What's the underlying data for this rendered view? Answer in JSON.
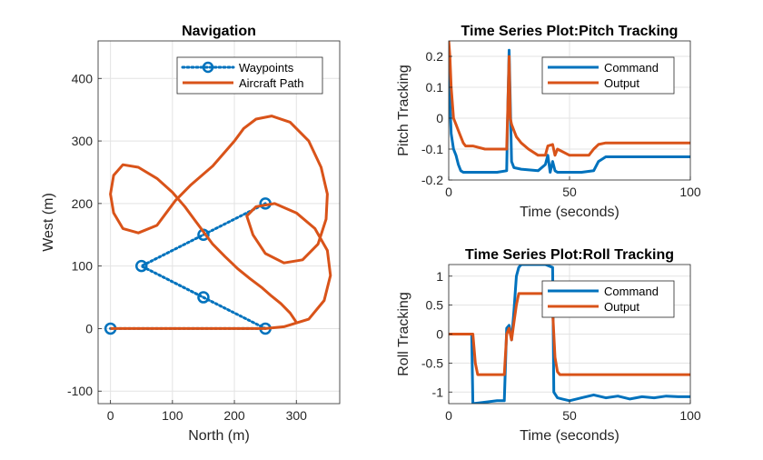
{
  "chart_data": [
    {
      "type": "line",
      "title": "Navigation",
      "xlabel": "North (m)",
      "ylabel": "West (m)",
      "xlim": [
        -20,
        370
      ],
      "ylim": [
        -120,
        460
      ],
      "xticks": [
        0,
        100,
        200,
        300
      ],
      "yticks": [
        -100,
        0,
        100,
        200,
        300,
        400
      ],
      "grid": true,
      "legend": "top-right",
      "aspect": "equal",
      "series": [
        {
          "name": "Waypoints",
          "color": "#0072BD",
          "style": "dotted-circle-markers",
          "x": [
            0,
            250,
            150,
            50,
            150,
            250
          ],
          "y": [
            0,
            0,
            50,
            100,
            150,
            200
          ]
        },
        {
          "name": "Aircraft Path",
          "color": "#D95319",
          "style": "solid",
          "x": [
            0,
            100,
            200,
            250,
            280,
            320,
            345,
            355,
            350,
            330,
            300,
            265,
            235,
            220,
            230,
            250,
            280,
            310,
            335,
            348,
            350,
            340,
            320,
            290,
            260,
            235,
            215,
            200,
            165,
            130,
            105,
            90,
            75,
            45,
            20,
            5,
            0,
            5,
            20,
            45,
            75,
            100,
            120,
            135,
            150,
            165,
            185,
            205,
            225,
            245,
            260,
            275,
            290,
            300
          ],
          "y": [
            0,
            0,
            0,
            0,
            3,
            15,
            45,
            85,
            125,
            160,
            185,
            200,
            195,
            180,
            150,
            120,
            105,
            110,
            135,
            175,
            215,
            258,
            300,
            330,
            340,
            335,
            320,
            300,
            260,
            230,
            205,
            185,
            165,
            153,
            160,
            185,
            215,
            245,
            262,
            258,
            240,
            218,
            195,
            175,
            155,
            135,
            115,
            96,
            80,
            65,
            52,
            40,
            25,
            10
          ]
        }
      ]
    },
    {
      "type": "line",
      "title": "Time Series Plot:Pitch Tracking",
      "xlabel": "Time (seconds)",
      "ylabel": "Pitch Tracking",
      "xlim": [
        0,
        100
      ],
      "ylim": [
        -0.2,
        0.25
      ],
      "xticks": [
        0,
        50,
        100
      ],
      "yticks": [
        -0.2,
        -0.1,
        0,
        0.1,
        0.2
      ],
      "grid": true,
      "legend": "top-right",
      "series": [
        {
          "name": "Command",
          "color": "#0072BD",
          "x": [
            0,
            0.5,
            1,
            2,
            3,
            4,
            5,
            6,
            10,
            20,
            24,
            24.5,
            25,
            25.5,
            26,
            27,
            30,
            37,
            40,
            41,
            42,
            43,
            44,
            45,
            50,
            55,
            60,
            62,
            65,
            70,
            80,
            90,
            100
          ],
          "y": [
            0.25,
            0.05,
            -0.05,
            -0.1,
            -0.12,
            -0.15,
            -0.17,
            -0.175,
            -0.175,
            -0.175,
            -0.17,
            0.05,
            0.22,
            0.05,
            -0.14,
            -0.16,
            -0.165,
            -0.17,
            -0.15,
            -0.12,
            -0.175,
            -0.14,
            -0.17,
            -0.175,
            -0.175,
            -0.175,
            -0.17,
            -0.14,
            -0.125,
            -0.125,
            -0.125,
            -0.125,
            -0.125
          ]
        },
        {
          "name": "Output",
          "color": "#D95319",
          "x": [
            0,
            0.5,
            1,
            2,
            3,
            4,
            5,
            6,
            7,
            10,
            15,
            20,
            24,
            24.5,
            25,
            25.5,
            26,
            27,
            28,
            30,
            33,
            37,
            40,
            41,
            43,
            44,
            45,
            50,
            55,
            58,
            60,
            62,
            65,
            70,
            80,
            90,
            100
          ],
          "y": [
            0.25,
            0.2,
            0.1,
            0.0,
            -0.02,
            -0.04,
            -0.06,
            -0.08,
            -0.09,
            -0.09,
            -0.1,
            -0.1,
            -0.1,
            0.05,
            0.2,
            0.0,
            -0.02,
            -0.04,
            -0.06,
            -0.08,
            -0.1,
            -0.12,
            -0.12,
            -0.09,
            -0.085,
            -0.12,
            -0.1,
            -0.12,
            -0.12,
            -0.12,
            -0.1,
            -0.085,
            -0.08,
            -0.08,
            -0.08,
            -0.08,
            -0.08
          ]
        }
      ]
    },
    {
      "type": "line",
      "title": "Time Series Plot:Roll Tracking",
      "xlabel": "Time (seconds)",
      "ylabel": "Roll Tracking",
      "xlim": [
        0,
        100
      ],
      "ylim": [
        -1.2,
        1.2
      ],
      "xticks": [
        0,
        50,
        100
      ],
      "yticks": [
        -1,
        -0.5,
        0,
        0.5,
        1
      ],
      "grid": true,
      "legend": "top-right",
      "series": [
        {
          "name": "Command",
          "color": "#0072BD",
          "x": [
            0,
            9.5,
            10,
            14,
            20,
            23,
            24,
            25,
            26,
            27,
            28,
            29,
            30,
            35,
            40,
            43,
            43.5,
            45,
            47,
            50,
            55,
            60,
            65,
            70,
            75,
            80,
            85,
            90,
            95,
            100
          ],
          "y": [
            0,
            0,
            -1.2,
            -1.18,
            -1.15,
            -1.15,
            0.1,
            0.15,
            -0.1,
            0.4,
            1.0,
            1.15,
            1.2,
            1.2,
            1.2,
            1.15,
            -1.0,
            -1.1,
            -1.12,
            -1.15,
            -1.1,
            -1.05,
            -1.1,
            -1.07,
            -1.12,
            -1.08,
            -1.1,
            -1.07,
            -1.08,
            -1.08
          ]
        },
        {
          "name": "Output",
          "color": "#D95319",
          "x": [
            0,
            10,
            11,
            12,
            20,
            23,
            24,
            25,
            26,
            27,
            28,
            29,
            30,
            40,
            42,
            43,
            44,
            45,
            46,
            50,
            60,
            70,
            80,
            90,
            100
          ],
          "y": [
            0,
            0,
            -0.5,
            -0.7,
            -0.7,
            -0.7,
            0,
            0.1,
            -0.1,
            0.2,
            0.5,
            0.7,
            0.7,
            0.7,
            0.7,
            0.4,
            -0.4,
            -0.65,
            -0.7,
            -0.7,
            -0.7,
            -0.7,
            -0.7,
            -0.7,
            -0.7
          ]
        }
      ]
    }
  ]
}
